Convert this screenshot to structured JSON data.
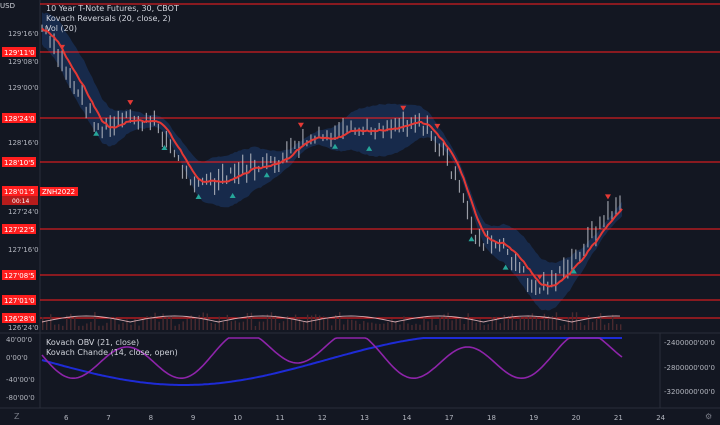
{
  "header": {
    "currency": "USD",
    "symbol_line": "10 Year T-Note Futures, 30, CBOT",
    "indicator1": "Kovach Reversals (20, close, 2)",
    "indicator2": "Vol (20)",
    "indicator3": "Kovach OBV (21, close)",
    "indicator4": "Kovach Chande (14, close, open)"
  },
  "price_badge": {
    "price": "128'01'5",
    "symbol": "ZNH2022",
    "countdown": "00:14"
  },
  "horizontal_levels": [
    "129'11'0",
    "128'24'0",
    "128'10'5",
    "127'22'5",
    "127'08'5",
    "127'01'0",
    "126'28'0"
  ],
  "price_axis_labels": [
    "129'16'0",
    "129'08'0",
    "129'00'0",
    "128'16'0",
    "127'24'0",
    "127'16'0",
    "126'24'0"
  ],
  "x_axis_labels": [
    "6",
    "7",
    "8",
    "9",
    "10",
    "11",
    "12",
    "13",
    "14",
    "17",
    "18",
    "19",
    "20",
    "21",
    "24"
  ],
  "oscillator_left_labels": [
    "40'00'0",
    "0'00'0",
    "-40'00'0",
    "-80'00'0"
  ],
  "oscillator_right_labels": [
    "-2400000'00'0",
    "-2800000'00'0",
    "-3200000'00'0"
  ],
  "colors": {
    "background": "#131722",
    "level_line": "#ff1e1e",
    "band_fill": "#1c3a6e",
    "ma_line": "#e53935",
    "candle": "#b2b5be",
    "up_marker": "#26a69a",
    "down_marker": "#e53935",
    "obv": "#1e2bd6",
    "chande": "#8e24aa",
    "volume": "#4a2a2f"
  },
  "chart_data": {
    "type": "line",
    "title": "10 Year T-Note Futures, 30, CBOT",
    "x": [
      0,
      10,
      20,
      30,
      40,
      50,
      60,
      70,
      80,
      90,
      100,
      110,
      120,
      130,
      140,
      150,
      160,
      170,
      180,
      190,
      200
    ],
    "series": [
      {
        "name": "close",
        "values": [
          129.35,
          128.9,
          128.45,
          128.55,
          128.5,
          128.05,
          127.98,
          128.12,
          128.15,
          128.35,
          128.4,
          128.45,
          128.5,
          128.55,
          128.2,
          127.5,
          127.4,
          127.05,
          127.2,
          127.55,
          127.85
        ]
      }
    ],
    "ylim": [
      126.7,
      129.6
    ]
  }
}
